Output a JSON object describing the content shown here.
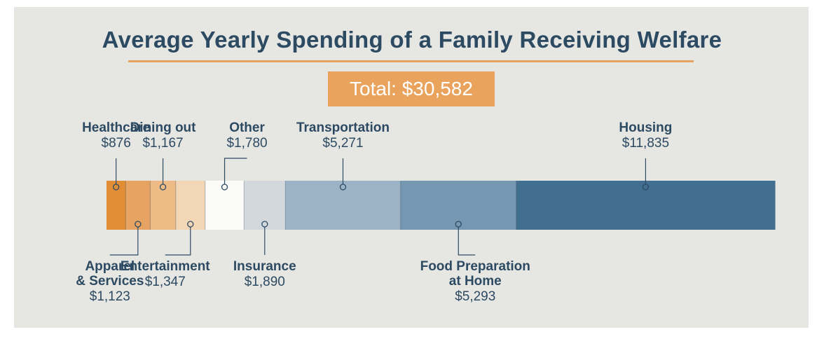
{
  "title": "Average Yearly Spending of a Family Receiving Welfare",
  "total_label": "Total: $30,582",
  "colors": {
    "text": "#2d4a63",
    "accent": "#e9a35d",
    "background": "#e6e6e2"
  },
  "chart_data": {
    "type": "bar",
    "title": "Average Yearly Spending of a Family Receiving Welfare",
    "stacked": true,
    "orientation": "horizontal",
    "total": 30582,
    "categories": [
      "Healthcare",
      "Apparel\n& Services",
      "Dining out",
      "Entertainment",
      "Other",
      "Insurance",
      "Transportation",
      "Food Preparation\nat Home",
      "Housing"
    ],
    "values": [
      876,
      1123,
      1167,
      1347,
      1780,
      1890,
      5271,
      5293,
      11835
    ],
    "value_labels": [
      "$876",
      "$1,123",
      "$1,167",
      "$1,347",
      "$1,780",
      "$1,890",
      "$5,271",
      "$5,293",
      "$11,835"
    ],
    "label_side": [
      "top",
      "bottom",
      "top",
      "bottom",
      "top",
      "bottom",
      "top",
      "bottom",
      "top"
    ],
    "colors": [
      "#e28e37",
      "#e7a361",
      "#eebb86",
      "#f3d6b6",
      "#fbfbf9",
      "#d3d8dd",
      "#9cb3c6",
      "#7697b1",
      "#426f90"
    ]
  }
}
